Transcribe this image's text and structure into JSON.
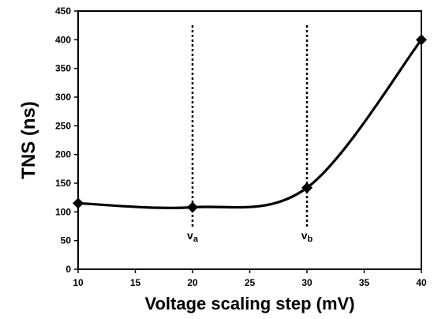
{
  "chart_data": {
    "type": "line",
    "title": "",
    "xlabel": "Voltage scaling step (mV)",
    "ylabel": "TNS (ns)",
    "xlim": [
      10,
      40
    ],
    "ylim": [
      0,
      450
    ],
    "x_ticks": [
      10,
      15,
      20,
      25,
      30,
      35,
      40
    ],
    "y_ticks": [
      0,
      50,
      100,
      150,
      200,
      250,
      300,
      350,
      400,
      450
    ],
    "grid": false,
    "legend": "none",
    "series": [
      {
        "x": [
          10,
          20,
          30,
          40
        ],
        "values": [
          115,
          108,
          142,
          400
        ],
        "marker": "diamond",
        "smooth": true
      }
    ],
    "reference_lines": [
      {
        "x": 20,
        "label": "v",
        "subscript": "a",
        "style": "dotted"
      },
      {
        "x": 30,
        "label": "v",
        "subscript": "b",
        "style": "dotted"
      }
    ],
    "colors": {
      "line": "#000000",
      "marker": "#000000",
      "background": "#ffffff"
    }
  }
}
